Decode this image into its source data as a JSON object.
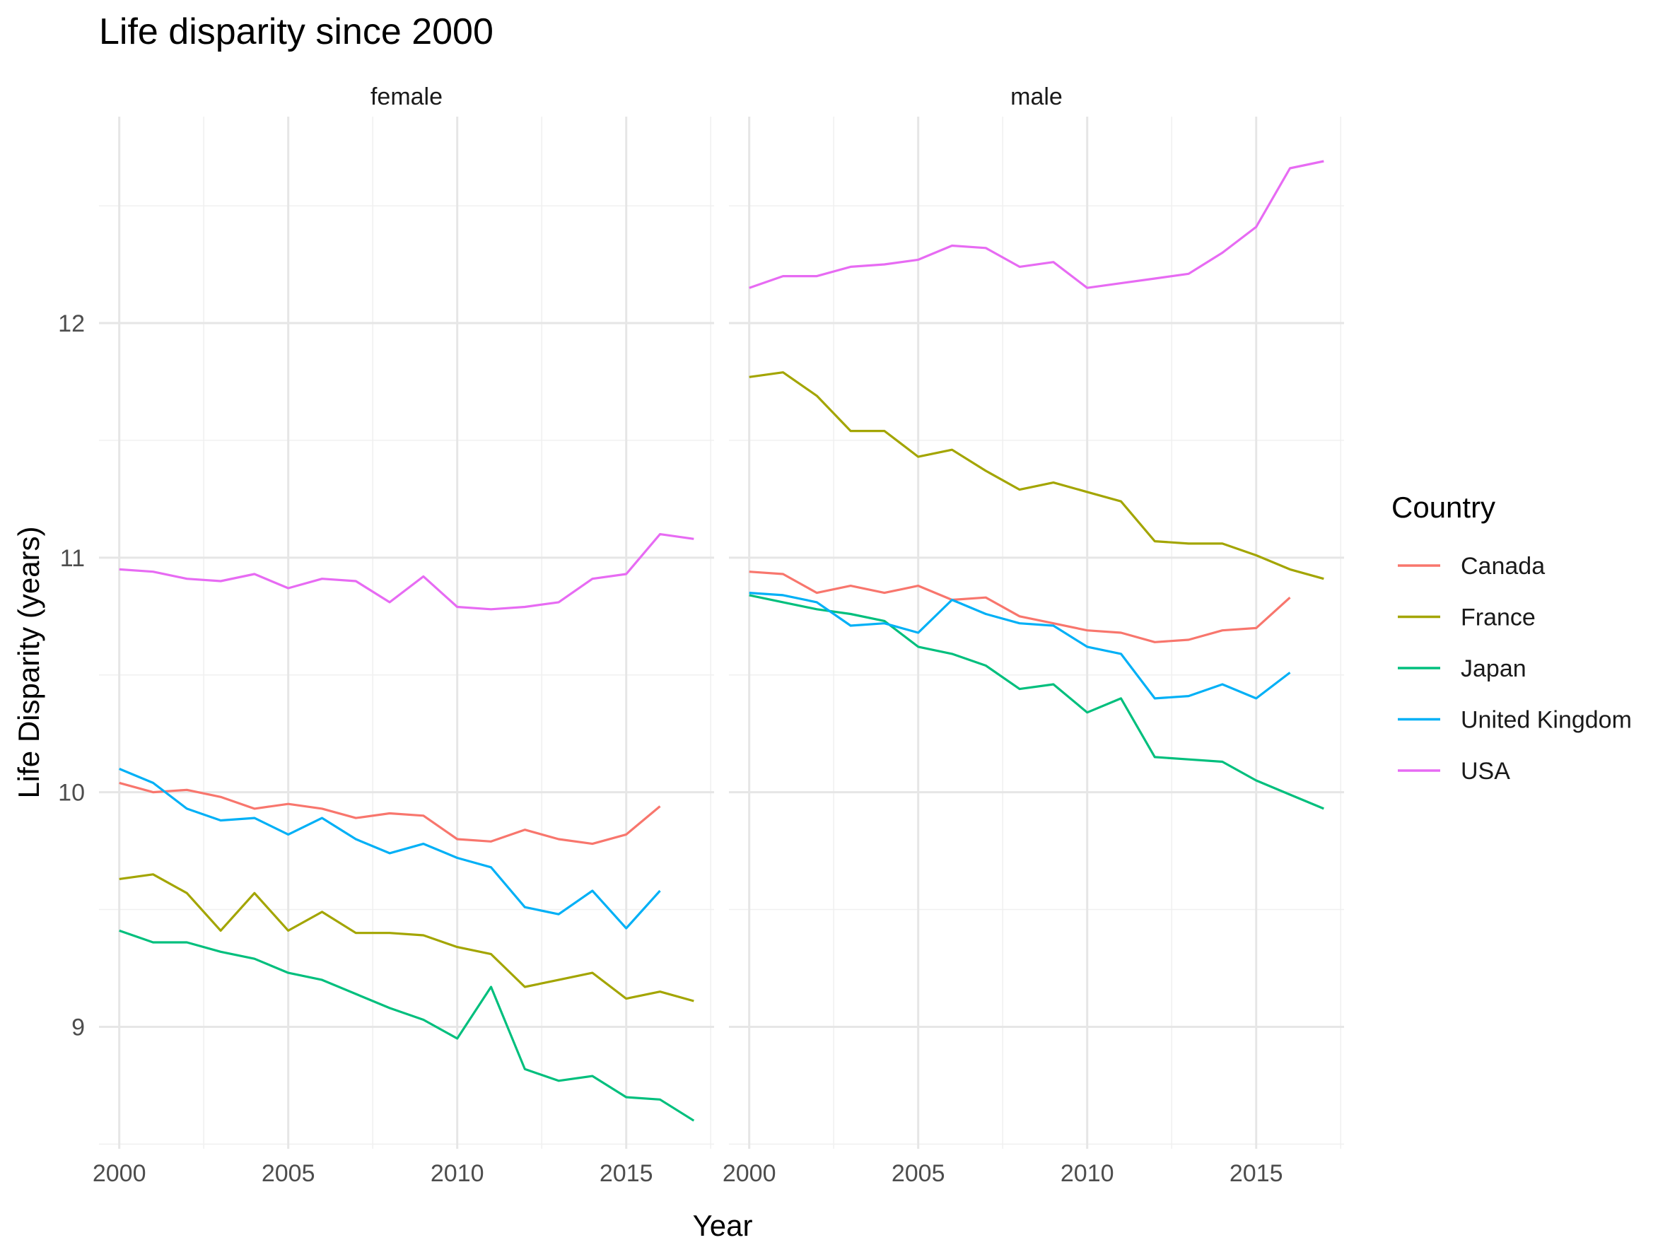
{
  "chart_data": {
    "type": "line",
    "title": "Life disparity since 2000",
    "xlabel": "Year",
    "ylabel": "Life Disparity (years)",
    "xlim": [
      1999.4,
      2017.6
    ],
    "ylim": [
      8.48,
      12.88
    ],
    "x_ticks": [
      2000,
      2005,
      2010,
      2015
    ],
    "x_tick_labels": [
      "2000",
      "2005",
      "2010",
      "2015"
    ],
    "y_ticks": [
      9,
      10,
      11,
      12
    ],
    "y_tick_labels": [
      "9",
      "10",
      "11",
      "12"
    ],
    "grid": true,
    "legend": {
      "title": "Country",
      "position": "right",
      "entries": [
        {
          "name": "Canada",
          "color": "#F8766D"
        },
        {
          "name": "France",
          "color": "#A3A500"
        },
        {
          "name": "Japan",
          "color": "#00BF7D"
        },
        {
          "name": "United Kingdom",
          "color": "#00B0F6"
        },
        {
          "name": "USA",
          "color": "#E76BF3"
        }
      ]
    },
    "facets": [
      {
        "label": "female",
        "series": [
          {
            "name": "Canada",
            "color": "#F8766D",
            "x": [
              2000,
              2001,
              2002,
              2003,
              2004,
              2005,
              2006,
              2007,
              2008,
              2009,
              2010,
              2011,
              2012,
              2013,
              2014,
              2015,
              2016
            ],
            "y": [
              10.04,
              10.0,
              10.01,
              9.98,
              9.93,
              9.95,
              9.93,
              9.89,
              9.91,
              9.9,
              9.8,
              9.79,
              9.84,
              9.8,
              9.78,
              9.82,
              9.94
            ]
          },
          {
            "name": "France",
            "color": "#A3A500",
            "x": [
              2000,
              2001,
              2002,
              2003,
              2004,
              2005,
              2006,
              2007,
              2008,
              2009,
              2010,
              2011,
              2012,
              2013,
              2014,
              2015,
              2016,
              2017
            ],
            "y": [
              9.63,
              9.65,
              9.57,
              9.41,
              9.57,
              9.41,
              9.49,
              9.4,
              9.4,
              9.39,
              9.34,
              9.31,
              9.17,
              9.2,
              9.23,
              9.12,
              9.15,
              9.11
            ]
          },
          {
            "name": "Japan",
            "color": "#00BF7D",
            "x": [
              2000,
              2001,
              2002,
              2003,
              2004,
              2005,
              2006,
              2007,
              2008,
              2009,
              2010,
              2011,
              2012,
              2013,
              2014,
              2015,
              2016,
              2017
            ],
            "y": [
              9.41,
              9.36,
              9.36,
              9.32,
              9.29,
              9.23,
              9.2,
              9.14,
              9.08,
              9.03,
              8.95,
              9.17,
              8.82,
              8.77,
              8.79,
              8.7,
              8.69,
              8.6
            ]
          },
          {
            "name": "United Kingdom",
            "color": "#00B0F6",
            "x": [
              2000,
              2001,
              2002,
              2003,
              2004,
              2005,
              2006,
              2007,
              2008,
              2009,
              2010,
              2011,
              2012,
              2013,
              2014,
              2015,
              2016
            ],
            "y": [
              10.1,
              10.04,
              9.93,
              9.88,
              9.89,
              9.82,
              9.89,
              9.8,
              9.74,
              9.78,
              9.72,
              9.68,
              9.51,
              9.48,
              9.58,
              9.42,
              9.58
            ]
          },
          {
            "name": "USA",
            "color": "#E76BF3",
            "x": [
              2000,
              2001,
              2002,
              2003,
              2004,
              2005,
              2006,
              2007,
              2008,
              2009,
              2010,
              2011,
              2012,
              2013,
              2014,
              2015,
              2016,
              2017
            ],
            "y": [
              10.95,
              10.94,
              10.91,
              10.9,
              10.93,
              10.87,
              10.91,
              10.9,
              10.81,
              10.92,
              10.79,
              10.78,
              10.79,
              10.81,
              10.91,
              10.93,
              11.1,
              11.08
            ]
          }
        ]
      },
      {
        "label": "male",
        "series": [
          {
            "name": "Canada",
            "color": "#F8766D",
            "x": [
              2000,
              2001,
              2002,
              2003,
              2004,
              2005,
              2006,
              2007,
              2008,
              2009,
              2010,
              2011,
              2012,
              2013,
              2014,
              2015,
              2016
            ],
            "y": [
              10.94,
              10.93,
              10.85,
              10.88,
              10.85,
              10.88,
              10.82,
              10.83,
              10.75,
              10.72,
              10.69,
              10.68,
              10.64,
              10.65,
              10.69,
              10.7,
              10.83
            ]
          },
          {
            "name": "France",
            "color": "#A3A500",
            "x": [
              2000,
              2001,
              2002,
              2003,
              2004,
              2005,
              2006,
              2007,
              2008,
              2009,
              2010,
              2011,
              2012,
              2013,
              2014,
              2015,
              2016,
              2017
            ],
            "y": [
              11.77,
              11.79,
              11.69,
              11.54,
              11.54,
              11.43,
              11.46,
              11.37,
              11.29,
              11.32,
              11.28,
              11.24,
              11.07,
              11.06,
              11.06,
              11.01,
              10.95,
              10.91
            ]
          },
          {
            "name": "Japan",
            "color": "#00BF7D",
            "x": [
              2000,
              2001,
              2002,
              2003,
              2004,
              2005,
              2006,
              2007,
              2008,
              2009,
              2010,
              2011,
              2012,
              2013,
              2014,
              2015,
              2016,
              2017
            ],
            "y": [
              10.84,
              10.81,
              10.78,
              10.76,
              10.73,
              10.62,
              10.59,
              10.54,
              10.44,
              10.46,
              10.34,
              10.4,
              10.15,
              10.14,
              10.13,
              10.05,
              9.99,
              9.93
            ]
          },
          {
            "name": "United Kingdom",
            "color": "#00B0F6",
            "x": [
              2000,
              2001,
              2002,
              2003,
              2004,
              2005,
              2006,
              2007,
              2008,
              2009,
              2010,
              2011,
              2012,
              2013,
              2014,
              2015,
              2016
            ],
            "y": [
              10.85,
              10.84,
              10.81,
              10.71,
              10.72,
              10.68,
              10.82,
              10.76,
              10.72,
              10.71,
              10.62,
              10.59,
              10.4,
              10.41,
              10.46,
              10.4,
              10.51
            ]
          },
          {
            "name": "USA",
            "color": "#E76BF3",
            "x": [
              2000,
              2001,
              2002,
              2003,
              2004,
              2005,
              2006,
              2007,
              2008,
              2009,
              2010,
              2011,
              2012,
              2013,
              2014,
              2015,
              2016,
              2017
            ],
            "y": [
              12.15,
              12.2,
              12.2,
              12.24,
              12.25,
              12.27,
              12.33,
              12.32,
              12.24,
              12.26,
              12.15,
              12.17,
              12.19,
              12.21,
              12.3,
              12.41,
              12.66,
              12.69
            ]
          }
        ]
      }
    ]
  }
}
